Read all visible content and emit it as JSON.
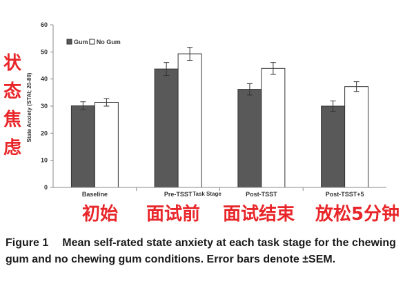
{
  "chart_data": {
    "type": "bar",
    "ylabel": "State Anxiety (STAI; 20-80)",
    "xlabel": "Task Stage",
    "ylim": [
      0,
      60
    ],
    "yticks": [
      0,
      10,
      20,
      30,
      40,
      50,
      60
    ],
    "grid": false,
    "legend_position": "top-left",
    "categories": [
      "Baseline",
      "Pre-TSST",
      "Post-TSST",
      "Post-TSST+5"
    ],
    "series": [
      {
        "name": "Gum",
        "color": "#595959",
        "values": [
          30.1,
          43.7,
          36.2,
          30.0
        ],
        "errors": [
          1.5,
          2.4,
          2.1,
          1.9
        ]
      },
      {
        "name": "No Gum",
        "color": "#ffffff",
        "values": [
          31.4,
          49.3,
          43.9,
          37.2
        ],
        "errors": [
          1.4,
          2.4,
          2.2,
          1.8
        ]
      }
    ]
  },
  "annotations": {
    "y_cn": [
      "状",
      "态",
      "焦",
      "虑"
    ],
    "x_cn": [
      "初始",
      "面试前",
      "面试结束",
      "放松5分钟"
    ]
  },
  "caption": {
    "figure_number": "Figure 1",
    "text": "Mean self-rated state anxiety at each task stage for the chewing gum and no chewing gum conditions. Error bars denote ±SEM."
  }
}
